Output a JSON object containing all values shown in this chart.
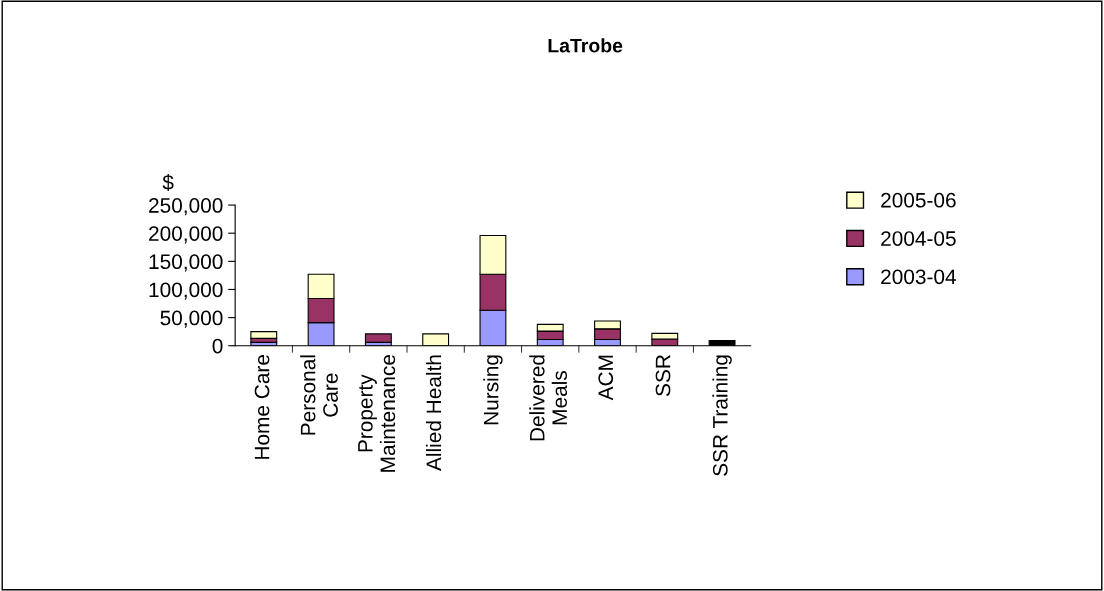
{
  "chart_data": {
    "type": "bar",
    "title": "LaTrobe",
    "ylabel": "$",
    "stacked": true,
    "legend": "right",
    "grid": false,
    "categories": [
      "Home Care",
      "Personal\nCare",
      "Property\nMaintenance",
      "Allied Health",
      "Nursing",
      "Delivered\nMeals",
      "ACM",
      "SSR",
      "SSR Training"
    ],
    "series": [
      {
        "name": "2003-04",
        "color": "#9999ff",
        "colors": [
          "#9999ff",
          "#9999ff",
          "#9999ff",
          "#9999ff",
          "#9999ff",
          "#9999ff",
          "#9999ff",
          "#9999ff",
          "#000000"
        ],
        "values": [
          6000,
          41000,
          6000,
          null,
          63000,
          11000,
          11000,
          null,
          9000
        ]
      },
      {
        "name": "2004-05",
        "color": "#993366",
        "values": [
          7000,
          43000,
          15000,
          null,
          64000,
          15000,
          19000,
          12000,
          null
        ]
      },
      {
        "name": "2005-06",
        "color": "#ffffcc",
        "values": [
          12000,
          43000,
          null,
          21000,
          69000,
          12000,
          14000,
          10000,
          null
        ]
      }
    ],
    "ylim": [
      0,
      250000
    ],
    "yticks": [
      {
        "value": 0,
        "label": "0"
      },
      {
        "value": 50000,
        "label": "50,000"
      },
      {
        "value": 100000,
        "label": "100,000"
      },
      {
        "value": 150000,
        "label": "150,000"
      },
      {
        "value": 200000,
        "label": "200,000"
      },
      {
        "value": 250000,
        "label": "250,000"
      }
    ]
  }
}
